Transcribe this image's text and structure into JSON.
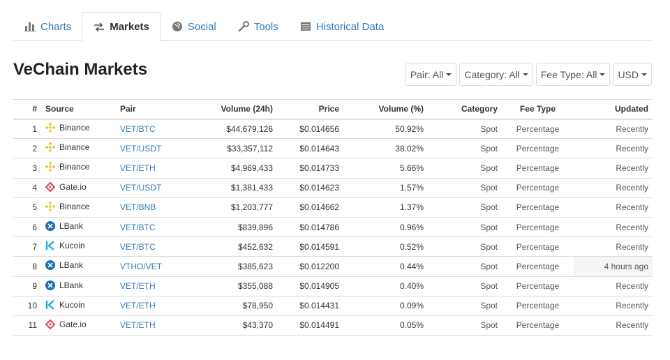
{
  "tabs": [
    {
      "label": "Charts",
      "icon": "bar-chart-icon",
      "active": false
    },
    {
      "label": "Markets",
      "icon": "exchange-arrows-icon",
      "active": true
    },
    {
      "label": "Social",
      "icon": "globe-icon",
      "active": false
    },
    {
      "label": "Tools",
      "icon": "wrench-icon",
      "active": false
    },
    {
      "label": "Historical Data",
      "icon": "calendar-table-icon",
      "active": false
    }
  ],
  "page_title": "VeChain Markets",
  "filters": {
    "pair": "Pair: All",
    "category": "Category: All",
    "fee_type": "Fee Type: All",
    "currency": "USD"
  },
  "table": {
    "headers": {
      "rank": "#",
      "source": "Source",
      "pair": "Pair",
      "volume_24h": "Volume (24h)",
      "price": "Price",
      "volume_pct": "Volume (%)",
      "category": "Category",
      "fee_type": "Fee Type",
      "updated": "Updated"
    },
    "rows": [
      {
        "rank": "1",
        "source": "Binance",
        "logo": "binance",
        "pair": "VET/BTC",
        "volume_24h": "$44,679,126",
        "price": "$0.014656",
        "volume_pct": "50.92%",
        "category": "Spot",
        "fee_type": "Percentage",
        "updated": "Recently"
      },
      {
        "rank": "2",
        "source": "Binance",
        "logo": "binance",
        "pair": "VET/USDT",
        "volume_24h": "$33,357,112",
        "price": "$0.014643",
        "volume_pct": "38.02%",
        "category": "Spot",
        "fee_type": "Percentage",
        "updated": "Recently"
      },
      {
        "rank": "3",
        "source": "Binance",
        "logo": "binance",
        "pair": "VET/ETH",
        "volume_24h": "$4,969,433",
        "price": "$0.014733",
        "volume_pct": "5.66%",
        "category": "Spot",
        "fee_type": "Percentage",
        "updated": "Recently"
      },
      {
        "rank": "4",
        "source": "Gate.io",
        "logo": "gateio",
        "pair": "VET/USDT",
        "volume_24h": "$1,381,433",
        "price": "$0.014623",
        "volume_pct": "1.57%",
        "category": "Spot",
        "fee_type": "Percentage",
        "updated": "Recently"
      },
      {
        "rank": "5",
        "source": "Binance",
        "logo": "binance",
        "pair": "VET/BNB",
        "volume_24h": "$1,203,777",
        "price": "$0.014662",
        "volume_pct": "1.37%",
        "category": "Spot",
        "fee_type": "Percentage",
        "updated": "Recently"
      },
      {
        "rank": "6",
        "source": "LBank",
        "logo": "lbank",
        "pair": "VET/BTC",
        "volume_24h": "$839,896",
        "price": "$0.014786",
        "volume_pct": "0.96%",
        "category": "Spot",
        "fee_type": "Percentage",
        "updated": "Recently"
      },
      {
        "rank": "7",
        "source": "Kucoin",
        "logo": "kucoin",
        "pair": "VET/BTC",
        "volume_24h": "$452,632",
        "price": "$0.014591",
        "volume_pct": "0.52%",
        "category": "Spot",
        "fee_type": "Percentage",
        "updated": "Recently"
      },
      {
        "rank": "8",
        "source": "LBank",
        "logo": "lbank",
        "pair": "VTHO/VET",
        "volume_24h": "$385,623",
        "price": "$0.012200",
        "volume_pct": "0.44%",
        "category": "Spot",
        "fee_type": "Percentage",
        "updated": "4 hours ago"
      },
      {
        "rank": "9",
        "source": "LBank",
        "logo": "lbank",
        "pair": "VET/ETH",
        "volume_24h": "$355,088",
        "price": "$0.014905",
        "volume_pct": "0.40%",
        "category": "Spot",
        "fee_type": "Percentage",
        "updated": "Recently"
      },
      {
        "rank": "10",
        "source": "Kucoin",
        "logo": "kucoin",
        "pair": "VET/ETH",
        "volume_24h": "$78,950",
        "price": "$0.014431",
        "volume_pct": "0.09%",
        "category": "Spot",
        "fee_type": "Percentage",
        "updated": "Recently"
      },
      {
        "rank": "11",
        "source": "Gate.io",
        "logo": "gateio",
        "pair": "VET/ETH",
        "volume_24h": "$43,370",
        "price": "$0.014491",
        "volume_pct": "0.05%",
        "category": "Spot",
        "fee_type": "Percentage",
        "updated": "Recently"
      }
    ]
  },
  "colors": {
    "link": "#337ab7",
    "binance": "#f0b90b",
    "gateio": "#d9534f",
    "lbank": "#1a6fb5",
    "kucoin": "#23a8e0",
    "stale_updated_bg": "#f3f5f7"
  }
}
